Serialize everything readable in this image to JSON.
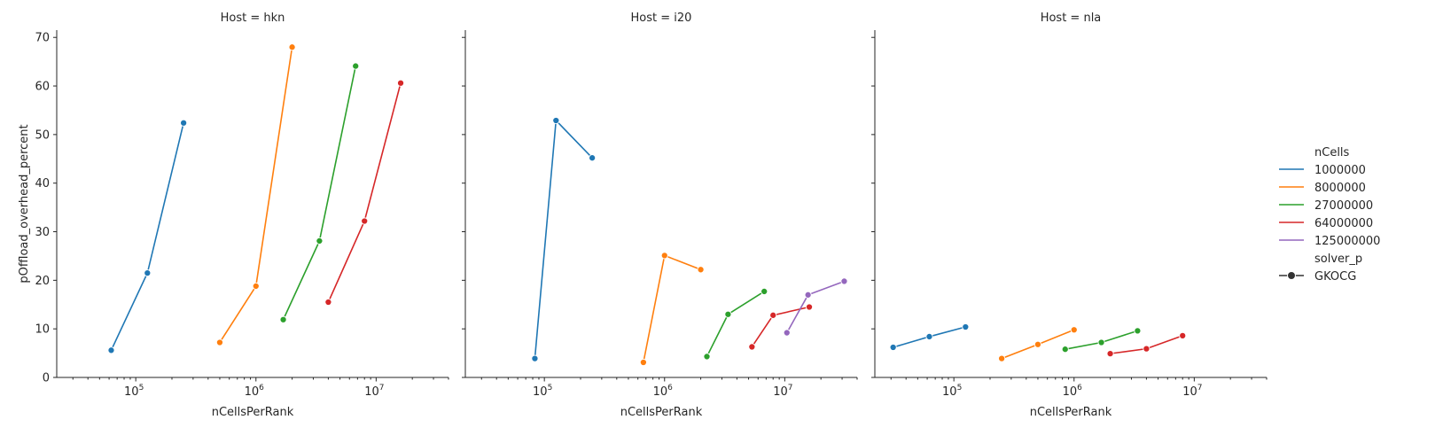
{
  "chart_data": {
    "type": "line",
    "x_scale": "log",
    "xlabel": "nCellsPerRank",
    "ylabel": "pOffload_overhead_percent",
    "xlim": [
      22000,
      40000000
    ],
    "ylim": [
      0,
      71.5
    ],
    "y_ticks": [
      0,
      10,
      20,
      30,
      40,
      50,
      60,
      70
    ],
    "x_ticks": [
      {
        "value": 100000,
        "base": "10",
        "exp": "5"
      },
      {
        "value": 1000000,
        "base": "10",
        "exp": "6"
      },
      {
        "value": 10000000,
        "base": "10",
        "exp": "7"
      }
    ],
    "legend": {
      "placement": "right",
      "hue_title": "nCells",
      "style_title": "solver_p",
      "style_entries": [
        "GKOCG"
      ]
    },
    "colors": {
      "1000000": "#1f77b4",
      "8000000": "#ff7f0e",
      "27000000": "#2ca02c",
      "64000000": "#d62728",
      "125000000": "#9467bd"
    },
    "series_names": [
      "1000000",
      "8000000",
      "27000000",
      "64000000",
      "125000000"
    ],
    "panels": [
      {
        "title": "Host = hkn",
        "series": [
          {
            "name": "1000000",
            "x": [
              62500,
              125000,
              250000
            ],
            "y": [
              5.6,
              21.5,
              52.4
            ]
          },
          {
            "name": "8000000",
            "x": [
              500000,
              1000000,
              2000000
            ],
            "y": [
              7.2,
              18.8,
              68.0
            ]
          },
          {
            "name": "27000000",
            "x": [
              1687500,
              3375000,
              6750000
            ],
            "y": [
              11.9,
              28.1,
              64.1
            ]
          },
          {
            "name": "64000000",
            "x": [
              4000000,
              8000000,
              16000000
            ],
            "y": [
              15.5,
              32.2,
              60.6
            ]
          }
        ]
      },
      {
        "title": "Host = i20",
        "series": [
          {
            "name": "1000000",
            "x": [
              83333,
              125000,
              250000
            ],
            "y": [
              3.9,
              52.9,
              45.2
            ]
          },
          {
            "name": "8000000",
            "x": [
              666667,
              1000000,
              2000000
            ],
            "y": [
              3.1,
              25.1,
              22.2
            ]
          },
          {
            "name": "27000000",
            "x": [
              2250000,
              3375000,
              6750000
            ],
            "y": [
              4.3,
              13.0,
              17.7
            ]
          },
          {
            "name": "64000000",
            "x": [
              5333333,
              8000000,
              16000000
            ],
            "y": [
              6.3,
              12.8,
              14.5
            ]
          },
          {
            "name": "125000000",
            "x": [
              10416667,
              15625000,
              31250000
            ],
            "y": [
              9.2,
              17.0,
              19.8
            ]
          }
        ]
      },
      {
        "title": "Host = nla",
        "series": [
          {
            "name": "1000000",
            "x": [
              31250,
              62500,
              125000
            ],
            "y": [
              6.2,
              8.4,
              10.4
            ]
          },
          {
            "name": "8000000",
            "x": [
              250000,
              500000,
              1000000
            ],
            "y": [
              3.9,
              6.8,
              9.8
            ]
          },
          {
            "name": "27000000",
            "x": [
              843750,
              1687500,
              3375000
            ],
            "y": [
              5.8,
              7.2,
              9.6
            ]
          },
          {
            "name": "64000000",
            "x": [
              2000000,
              4000000,
              8000000
            ],
            "y": [
              4.9,
              5.9,
              8.6
            ]
          }
        ]
      }
    ]
  }
}
